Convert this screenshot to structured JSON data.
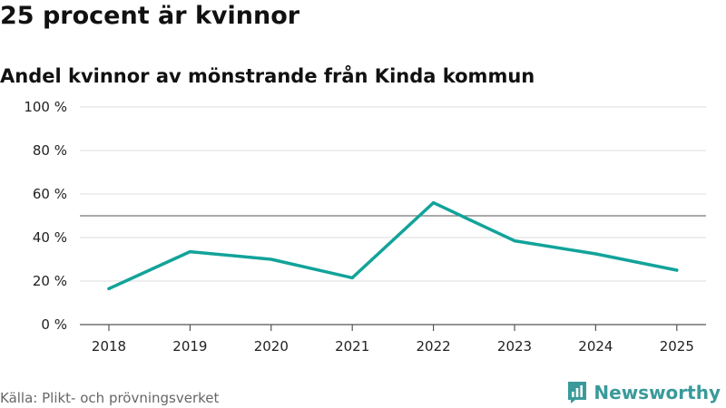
{
  "title": "25 procent är kvinnor",
  "subtitle": "Andel kvinnor av mönstrande från Kinda kommun",
  "source": "Källa: Plikt- och prövningsverket",
  "brand": {
    "name": "Newsworthy",
    "icon": "newsworthy-logo-icon",
    "color": "#3a9a9a"
  },
  "colors": {
    "line": "#12a39a",
    "reference": "#777777",
    "grid": "#dddddd",
    "axis": "#555555"
  },
  "chart_data": {
    "type": "line",
    "title": "Andel kvinnor av mönstrande från Kinda kommun",
    "xlabel": "",
    "ylabel": "",
    "categories": [
      "2018",
      "2019",
      "2020",
      "2021",
      "2022",
      "2023",
      "2024",
      "2025"
    ],
    "series": [
      {
        "name": "Andel kvinnor",
        "values": [
          16.5,
          33.5,
          30,
          21.5,
          56,
          38.5,
          32.5,
          25
        ]
      }
    ],
    "reference_line": 50,
    "ylim": [
      0,
      100
    ],
    "yticks": [
      0,
      20,
      40,
      60,
      80,
      100
    ],
    "ytick_labels": [
      "0 %",
      "20 %",
      "40 %",
      "60 %",
      "80 %",
      "100 %"
    ],
    "grid": true
  }
}
